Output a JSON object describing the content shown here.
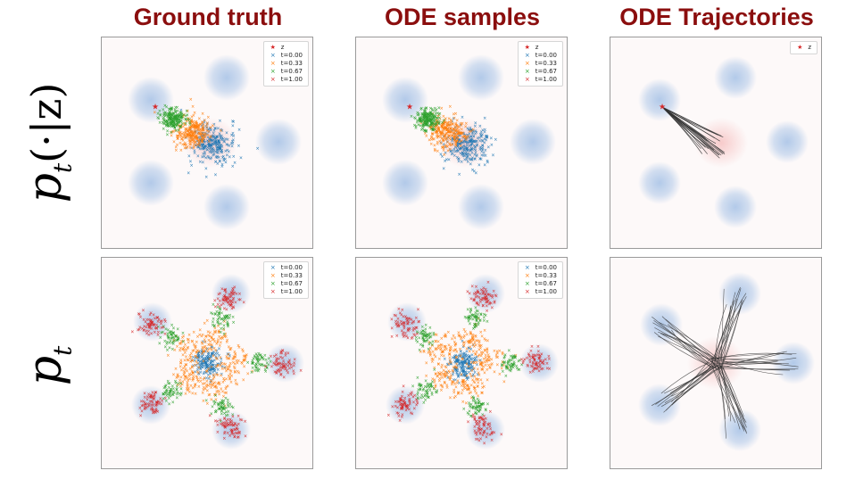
{
  "columns": [
    {
      "title": "Ground truth"
    },
    {
      "title": "ODE samples"
    },
    {
      "title": "ODE Trajectories"
    }
  ],
  "rows": [
    {
      "label_main": "p",
      "label_sub": "t",
      "label_rest": "(·|z)"
    },
    {
      "label_main": "p",
      "label_sub": "t",
      "label_rest": ""
    }
  ],
  "legends": {
    "conditional_samples": [
      {
        "marker": "★",
        "label": "z",
        "color": "#d62728"
      },
      {
        "marker": "×",
        "label": "t=0.00",
        "color": "#1f77b4"
      },
      {
        "marker": "×",
        "label": "t=0.33",
        "color": "#ff7f0e"
      },
      {
        "marker": "×",
        "label": "t=0.67",
        "color": "#2ca02c"
      },
      {
        "marker": "×",
        "label": "t=1.00",
        "color": "#d62728"
      }
    ],
    "conditional_trajectories": [
      {
        "marker": "★",
        "label": "z",
        "color": "#d62728"
      }
    ],
    "marginal_samples": [
      {
        "marker": "×",
        "label": "t=0.00",
        "color": "#1f77b4"
      },
      {
        "marker": "×",
        "label": "t=0.33",
        "color": "#ff7f0e"
      },
      {
        "marker": "×",
        "label": "t=0.67",
        "color": "#2ca02c"
      },
      {
        "marker": "×",
        "label": "t=1.00",
        "color": "#d62728"
      }
    ]
  },
  "colors": {
    "title": "#8b0e0e",
    "t000": "#1f77b4",
    "t033": "#ff7f0e",
    "t067": "#2ca02c",
    "t100": "#d62728",
    "target_density": "#aec7e8",
    "source_density": "#f4b6b6",
    "trajectory": "#333333"
  }
}
